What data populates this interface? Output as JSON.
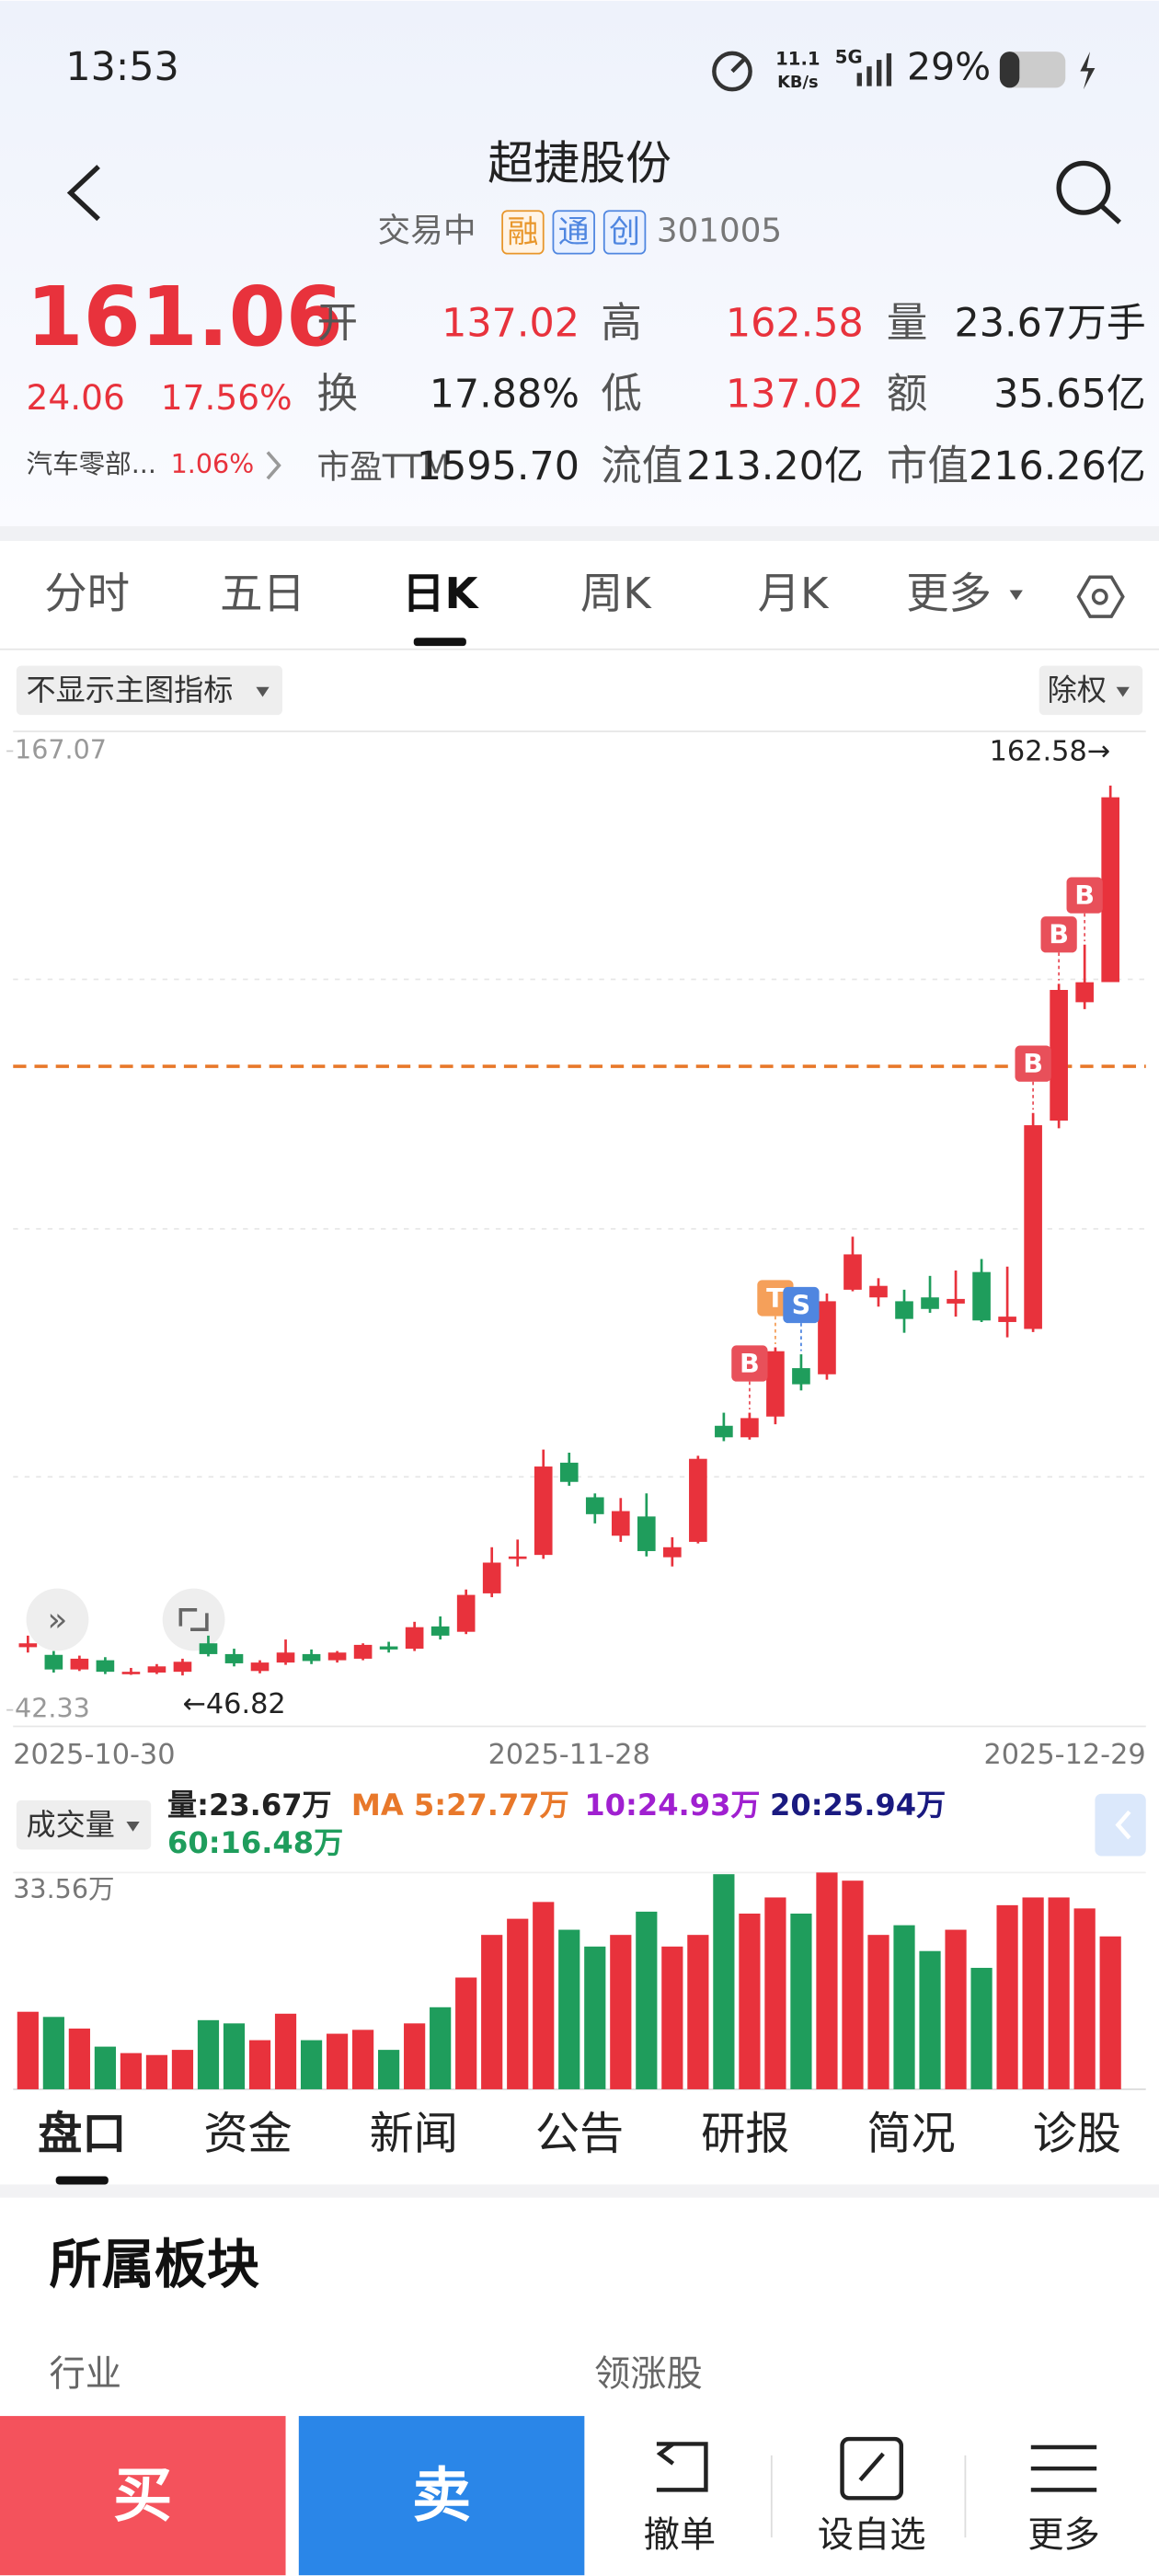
{
  "status_bar": {
    "time": "13:53",
    "speed": "11.1",
    "speed_unit": "KB/s",
    "network": "5G",
    "battery": "29%"
  },
  "header": {
    "title": "超捷股份",
    "status": "交易中",
    "badges": [
      "融",
      "通",
      "创"
    ],
    "code": "301005"
  },
  "quote": {
    "price": "161.06",
    "change": "24.06",
    "change_pct": "17.56%",
    "sector": "汽车零部...",
    "sector_pct": "1.06%",
    "fields": [
      {
        "label": "开",
        "value": "137.02",
        "color": "#e8323c"
      },
      {
        "label": "高",
        "value": "162.58",
        "color": "#e8323c"
      },
      {
        "label": "量",
        "value": "23.67万手",
        "color": "#222"
      },
      {
        "label": "换",
        "value": "17.88%",
        "color": "#222"
      },
      {
        "label": "低",
        "value": "137.02",
        "color": "#e8323c"
      },
      {
        "label": "额",
        "value": "35.65亿",
        "color": "#222"
      },
      {
        "label": "市盈TTM",
        "value": "1595.70",
        "color": "#222"
      },
      {
        "label": "流值",
        "value": "213.20亿",
        "color": "#222"
      },
      {
        "label": "市值",
        "value": "216.26亿",
        "color": "#222"
      }
    ]
  },
  "period_tabs": {
    "items": [
      "分时",
      "五日",
      "日K",
      "周K",
      "月K",
      "更多"
    ],
    "active": 2
  },
  "toolbar": {
    "indicator": "不显示主图指标",
    "adjust": "除权"
  },
  "chart_data": {
    "type": "candlestick",
    "categories": [
      "2025-10-30",
      null,
      null,
      null,
      null,
      null,
      null,
      null,
      null,
      null,
      null,
      null,
      null,
      null,
      null,
      null,
      null,
      null,
      null,
      null,
      null,
      "2025-11-28",
      null,
      null,
      null,
      null,
      null,
      null,
      null,
      null,
      null,
      null,
      null,
      null,
      null,
      null,
      null,
      null,
      null,
      null,
      null,
      null,
      "2025-12-29"
    ],
    "open": [
      50.5,
      49.5,
      47.6,
      48.8,
      47.0,
      47.2,
      47.3,
      51.0,
      49.6,
      47.4,
      48.5,
      49.6,
      48.8,
      49.0,
      50.6,
      50.3,
      53.2,
      52.5,
      57.5,
      62.0,
      62.5,
      74.5,
      70.0,
      65.0,
      67.5,
      62.2,
      64.2,
      79.3,
      77.8,
      80.5,
      86.8,
      86.0,
      97.0,
      96.0,
      95.5,
      96.0,
      95.2,
      99.3,
      92.8,
      91.9,
      119.0,
      134.4,
      137.02
    ],
    "high": [
      52.0,
      50.0,
      49.4,
      49.2,
      47.8,
      48.3,
      49.0,
      52.0,
      50.3,
      48.8,
      51.5,
      50.2,
      50.0,
      51.0,
      51.2,
      53.8,
      54.5,
      58.0,
      63.5,
      64.5,
      76.2,
      75.8,
      70.5,
      69.9,
      70.5,
      64.8,
      75.4,
      81.0,
      81.0,
      89.5,
      88.6,
      96.5,
      103.9,
      98.5,
      97.0,
      98.8,
      99.5,
      101.0,
      100.0,
      120.0,
      136.8,
      141.9,
      162.58
    ],
    "low": [
      49.8,
      47.2,
      47.4,
      47.0,
      46.9,
      47.0,
      46.82,
      49.3,
      48.0,
      47.1,
      48.2,
      48.3,
      48.5,
      48.8,
      49.8,
      50.0,
      51.5,
      52.2,
      57.0,
      61.0,
      62.0,
      71.5,
      66.6,
      64.2,
      62.3,
      61.0,
      64.0,
      77.3,
      77.5,
      79.5,
      83.9,
      85.3,
      96.8,
      94.8,
      91.4,
      94.0,
      93.5,
      92.8,
      90.8,
      91.5,
      118.0,
      133.5,
      137.02
    ],
    "close": [
      51.0,
      47.6,
      49.0,
      47.3,
      47.3,
      48.0,
      48.6,
      49.6,
      48.4,
      48.5,
      49.8,
      48.7,
      49.8,
      50.8,
      50.2,
      53.1,
      52.0,
      57.3,
      61.5,
      62.3,
      74.0,
      72.0,
      67.8,
      68.2,
      63.0,
      63.5,
      75.0,
      77.8,
      80.3,
      89.0,
      84.7,
      95.5,
      101.6,
      97.5,
      93.2,
      94.5,
      95.8,
      93.0,
      93.5,
      118.4,
      136.0,
      137.0,
      161.06
    ],
    "up_color": "#e8323c",
    "down_color": "#1f9d5c",
    "ylim": [
      42.33,
      167.07
    ],
    "yticks": [
      42.33,
      167.07
    ],
    "annotations": [
      {
        "value": 162.58,
        "label": "162.58→"
      },
      {
        "value": 46.82,
        "label": "←46.82"
      }
    ],
    "reference_line": {
      "value": 126.06,
      "color": "#e8782a"
    },
    "signals": [
      {
        "candle": 28,
        "label": "B",
        "color": "#e8505a"
      },
      {
        "candle": 29,
        "label": "T",
        "color": "#f5a05a"
      },
      {
        "candle": 30,
        "label": "S",
        "color": "#4f86e0"
      },
      {
        "candle": 39,
        "label": "B",
        "color": "#e8505a"
      },
      {
        "candle": 40,
        "label": "B",
        "color": "#e8505a"
      },
      {
        "candle": 41,
        "label": "B",
        "color": "#e8505a"
      }
    ],
    "volume": {
      "label": "成交量",
      "values": [
        12.0,
        11.2,
        9.4,
        6.6,
        5.6,
        5.3,
        6.1,
        10.7,
        10.2,
        7.6,
        11.7,
        7.6,
        8.6,
        9.2,
        6.1,
        10.2,
        12.7,
        17.3,
        23.9,
        26.4,
        29.0,
        24.7,
        22.1,
        23.9,
        27.5,
        22.1,
        23.9,
        33.3,
        27.2,
        29.7,
        27.2,
        33.56,
        32.3,
        23.9,
        25.4,
        21.4,
        24.7,
        18.8,
        28.5,
        29.7,
        29.7,
        28.0,
        23.67
      ],
      "ylim": [
        0,
        33.56
      ],
      "yticks": [
        {
          "value": 33.56,
          "label": "33.56万"
        }
      ],
      "legend": [
        {
          "text": "量:23.67万",
          "color": "#222"
        },
        {
          "text": "MA 5:27.77万",
          "color": "#e8782a"
        },
        {
          "text": "10:24.93万",
          "color": "#a020d0"
        },
        {
          "text": "20:25.94万",
          "color": "#1a1a80"
        },
        {
          "text": "60:16.48万",
          "color": "#1f9d5c"
        }
      ]
    }
  },
  "info_tabs": {
    "items": [
      "盘口",
      "资金",
      "新闻",
      "公告",
      "研报",
      "简况",
      "诊股"
    ],
    "active": 0
  },
  "section": {
    "title": "所属板块",
    "left": "行业",
    "right": "领涨股"
  },
  "bottom_bar": {
    "buy": "买",
    "sell": "卖",
    "actions": [
      "撤单",
      "设自选",
      "更多"
    ]
  }
}
